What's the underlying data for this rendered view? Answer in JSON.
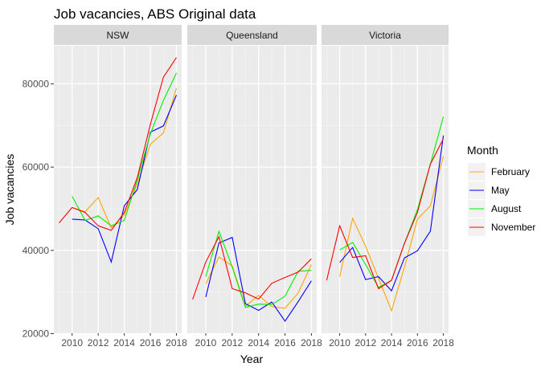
{
  "chart_data": {
    "type": "line",
    "title": "Job vacancies, ABS Original data",
    "xlabel": "Year",
    "ylabel": "Job vacancies",
    "xlim": [
      2008.6,
      2018.4
    ],
    "ylim": [
      20000,
      89000
    ],
    "x_ticks": [
      2010,
      2012,
      2014,
      2016,
      2018
    ],
    "x_tick_labels": [
      "2010",
      "2012",
      "2014",
      "2016",
      "2018"
    ],
    "y_ticks": [
      20000,
      40000,
      60000,
      80000
    ],
    "y_tick_labels": [
      "20000",
      "40000",
      "60000",
      "80000"
    ],
    "grid": true,
    "legend": {
      "title": "Month",
      "position": "right",
      "entries": [
        {
          "label": "February",
          "color": "#FFA500"
        },
        {
          "label": "May",
          "color": "#0000FF"
        },
        {
          "label": "August",
          "color": "#00EE00"
        },
        {
          "label": "November",
          "color": "#FF0000"
        }
      ]
    },
    "facets": [
      {
        "label": "NSW",
        "series": [
          {
            "name": "February",
            "x": [
              2010,
              2011,
              2012,
              2013,
              2014,
              2015,
              2016,
              2017,
              2018
            ],
            "values": [
              50300,
              49300,
              52700,
              45400,
              48500,
              55900,
              65500,
              68200,
              79000
            ]
          },
          {
            "name": "May",
            "x": [
              2010,
              2011,
              2012,
              2013,
              2014,
              2015,
              2016,
              2017,
              2018
            ],
            "values": [
              47500,
              47300,
              45200,
              37200,
              50700,
              54600,
              68400,
              69900,
              77300
            ]
          },
          {
            "name": "August",
            "x": [
              2010,
              2011,
              2012,
              2013,
              2014,
              2015,
              2016,
              2017,
              2018
            ],
            "values": [
              53000,
              47200,
              48300,
              45900,
              47200,
              56900,
              68000,
              76000,
              82600
            ]
          },
          {
            "name": "November",
            "x": [
              2009,
              2010,
              2011,
              2012,
              2013,
              2014,
              2015,
              2016,
              2017,
              2018
            ],
            "values": [
              46600,
              50300,
              49100,
              45900,
              44800,
              49100,
              57500,
              70300,
              81600,
              86300
            ]
          }
        ]
      },
      {
        "label": "Queensland",
        "series": [
          {
            "name": "February",
            "x": [
              2010,
              2011,
              2012,
              2013,
              2014,
              2015,
              2016,
              2017,
              2018
            ],
            "values": [
              32000,
              38400,
              36300,
              26600,
              29200,
              26500,
              26100,
              29800,
              36600
            ]
          },
          {
            "name": "May",
            "x": [
              2010,
              2011,
              2012,
              2013,
              2014,
              2015,
              2016,
              2017,
              2018
            ],
            "values": [
              28800,
              41800,
              43100,
              27200,
              25600,
              27600,
              23000,
              27700,
              32700
            ]
          },
          {
            "name": "August",
            "x": [
              2010,
              2011,
              2012,
              2013,
              2014,
              2015,
              2016,
              2017,
              2018
            ],
            "values": [
              33700,
              44600,
              36000,
              26300,
              27100,
              27000,
              29000,
              35000,
              35200
            ]
          },
          {
            "name": "November",
            "x": [
              2009,
              2010,
              2011,
              2012,
              2013,
              2014,
              2015,
              2016,
              2017,
              2018
            ],
            "values": [
              28200,
              37200,
              43300,
              30800,
              29800,
              28300,
              32100,
              33500,
              34800,
              38000
            ]
          }
        ]
      },
      {
        "label": "Victoria",
        "series": [
          {
            "name": "February",
            "x": [
              2010,
              2011,
              2012,
              2013,
              2014,
              2015,
              2016,
              2017,
              2018
            ],
            "values": [
              33700,
              47700,
              41000,
              33300,
              25500,
              36000,
              47500,
              50700,
              62600
            ]
          },
          {
            "name": "May",
            "x": [
              2010,
              2011,
              2012,
              2013,
              2014,
              2015,
              2016,
              2017,
              2018
            ],
            "values": [
              37100,
              40700,
              33000,
              33700,
              30300,
              38200,
              39900,
              44600,
              67600
            ]
          },
          {
            "name": "August",
            "x": [
              2010,
              2011,
              2012,
              2013,
              2014,
              2015,
              2016,
              2017,
              2018
            ],
            "values": [
              40100,
              41900,
              36600,
              31100,
              32800,
              41700,
              49800,
              60700,
              72100
            ]
          },
          {
            "name": "November",
            "x": [
              2009,
              2010,
              2011,
              2012,
              2013,
              2014,
              2015,
              2016,
              2017,
              2018
            ],
            "values": [
              32800,
              45900,
              38300,
              38700,
              30800,
              32800,
              41700,
              49100,
              60700,
              66800
            ]
          }
        ]
      }
    ]
  }
}
